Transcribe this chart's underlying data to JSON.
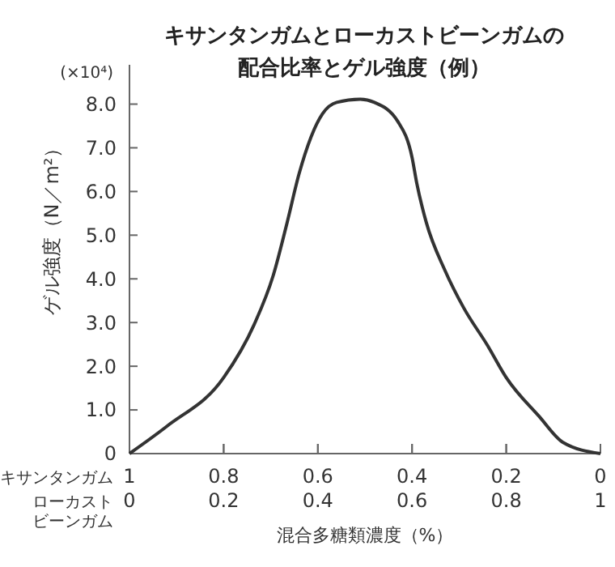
{
  "chart_data": {
    "type": "line",
    "title": "キサンタンガムとローカストビーンガムの配合比率とゲル強度（例）",
    "xlabel": "混合多糖類濃度（%）",
    "ylabel": "ゲル強度（N／m²）",
    "annotations": [
      "(×10⁴)",
      "キサンタンガム",
      "ローカストビーンガム"
    ],
    "x": [
      0,
      0.08,
      0.2,
      0.265,
      0.305,
      0.335,
      0.36,
      0.41,
      0.44,
      0.49,
      0.52,
      0.57,
      0.6,
      0.61,
      0.63,
      0.67,
      0.71,
      0.76,
      0.8,
      0.87,
      0.92,
      1
    ],
    "series": [
      {
        "color": "#333333",
        "values": [
          0,
          0.63,
          1.74,
          2.96,
          4.07,
          5.3,
          6.4,
          7.78,
          8.04,
          8.11,
          8.04,
          7.6,
          6.78,
          6.19,
          5.3,
          4.19,
          3.33,
          2.48,
          1.74,
          0.85,
          0.26,
          0
        ]
      }
    ],
    "xlim": [
      0,
      1
    ],
    "xticks": [
      0,
      0.2,
      0.4,
      0.6,
      0.8,
      1
    ],
    "x2lim": [
      1,
      0
    ],
    "x2ticks": [
      1,
      0.8,
      0.6,
      0.4,
      0.2,
      0
    ],
    "ylim": [
      0,
      8.9
    ],
    "yticks": [
      0,
      {
        "value": 1,
        "label": "1.0"
      },
      {
        "value": 2,
        "label": "2.0"
      },
      {
        "value": 3,
        "label": "3.0"
      },
      {
        "value": 4,
        "label": "4.0"
      },
      {
        "value": 5,
        "label": "5.0"
      },
      {
        "value": 6,
        "label": "6.0"
      },
      {
        "value": 7,
        "label": "7.0"
      },
      {
        "value": 8,
        "label": "8.0"
      }
    ],
    "grid": false,
    "marker": "none",
    "line_style": "solid"
  }
}
